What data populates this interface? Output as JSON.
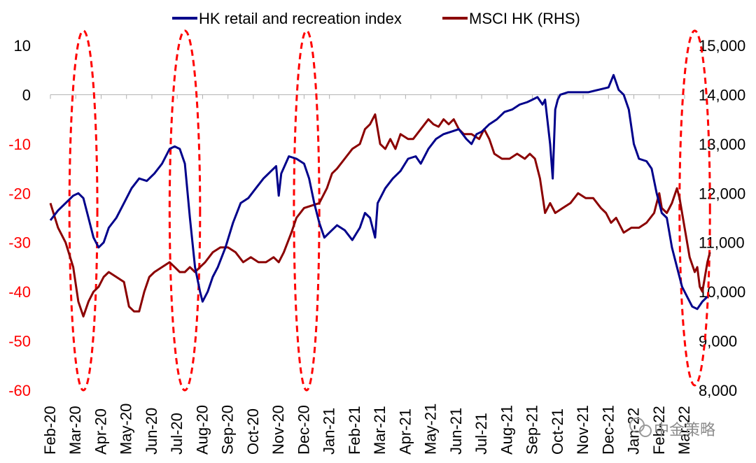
{
  "chart_data": {
    "type": "line",
    "title": "",
    "legend": [
      "HK retail and recreation index",
      "MSCI HK (RHS)"
    ],
    "legend_placement": "top-center",
    "x_labels": [
      "Feb-20",
      "Mar-20",
      "Apr-20",
      "May-20",
      "Jun-20",
      "Jul-20",
      "Aug-20",
      "Sep-20",
      "Oct-20",
      "Nov-20",
      "Dec-20",
      "Jan-21",
      "Feb-21",
      "Mar-21",
      "Apr-21",
      "May-21",
      "Jun-21",
      "Jul-21",
      "Aug-21",
      "Sep-21",
      "Oct-21",
      "Nov-21",
      "Dec-21",
      "Jan-22",
      "Feb-22",
      "Mar-22"
    ],
    "y_left": {
      "ticks": [
        "10",
        "0",
        "-10",
        "-20",
        "-30",
        "-40",
        "-50",
        "-60"
      ],
      "range": [
        -60,
        10
      ],
      "color": "#000000"
    },
    "y_right": {
      "ticks": [
        "15,000",
        "14,000",
        "13,000",
        "12,000",
        "11,000",
        "10,000",
        "9,000",
        "8,000"
      ],
      "range": [
        8000,
        15000
      ]
    },
    "series": [
      {
        "name": "HK retail and recreation index",
        "axis": "left",
        "color": "#00008b",
        "points": [
          [
            0,
            -25.5
          ],
          [
            0.3,
            -23.5
          ],
          [
            0.6,
            -22
          ],
          [
            0.9,
            -20.5
          ],
          [
            1.1,
            -20
          ],
          [
            1.3,
            -21
          ],
          [
            1.5,
            -25
          ],
          [
            1.7,
            -29
          ],
          [
            1.9,
            -31
          ],
          [
            2.1,
            -30
          ],
          [
            2.3,
            -27
          ],
          [
            2.6,
            -25
          ],
          [
            2.9,
            -22
          ],
          [
            3.2,
            -19
          ],
          [
            3.5,
            -17
          ],
          [
            3.8,
            -17.5
          ],
          [
            4.1,
            -16
          ],
          [
            4.4,
            -14
          ],
          [
            4.7,
            -11
          ],
          [
            4.9,
            -10.5
          ],
          [
            5.1,
            -11
          ],
          [
            5.3,
            -14
          ],
          [
            5.5,
            -25
          ],
          [
            5.7,
            -35
          ],
          [
            5.9,
            -40
          ],
          [
            6.0,
            -42
          ],
          [
            6.2,
            -40
          ],
          [
            6.4,
            -37
          ],
          [
            6.6,
            -35
          ],
          [
            6.9,
            -31
          ],
          [
            7.2,
            -26
          ],
          [
            7.5,
            -22
          ],
          [
            7.8,
            -21
          ],
          [
            8.1,
            -19
          ],
          [
            8.4,
            -17
          ],
          [
            8.7,
            -15.5
          ],
          [
            8.9,
            -14.5
          ],
          [
            9.0,
            -20.5
          ],
          [
            9.1,
            -16
          ],
          [
            9.4,
            -12.5
          ],
          [
            9.7,
            -13
          ],
          [
            10.0,
            -14
          ],
          [
            10.2,
            -17
          ],
          [
            10.4,
            -22
          ],
          [
            10.6,
            -26
          ],
          [
            10.8,
            -29
          ],
          [
            11.0,
            -28
          ],
          [
            11.3,
            -26.5
          ],
          [
            11.6,
            -27.5
          ],
          [
            11.9,
            -29.5
          ],
          [
            12.2,
            -27
          ],
          [
            12.4,
            -24
          ],
          [
            12.6,
            -25
          ],
          [
            12.8,
            -29
          ],
          [
            12.9,
            -22
          ],
          [
            13.2,
            -19
          ],
          [
            13.5,
            -17
          ],
          [
            13.8,
            -15.5
          ],
          [
            14.1,
            -13
          ],
          [
            14.4,
            -12.5
          ],
          [
            14.6,
            -14
          ],
          [
            14.9,
            -11
          ],
          [
            15.2,
            -9
          ],
          [
            15.5,
            -8
          ],
          [
            15.8,
            -7.5
          ],
          [
            16.1,
            -7
          ],
          [
            16.4,
            -9
          ],
          [
            16.6,
            -10
          ],
          [
            16.8,
            -8
          ],
          [
            17.0,
            -7.5
          ],
          [
            17.3,
            -6
          ],
          [
            17.6,
            -5
          ],
          [
            17.9,
            -3.5
          ],
          [
            18.2,
            -3
          ],
          [
            18.5,
            -2
          ],
          [
            18.8,
            -1.5
          ],
          [
            19.0,
            -1
          ],
          [
            19.2,
            -0.5
          ],
          [
            19.4,
            -2
          ],
          [
            19.5,
            -1
          ],
          [
            19.7,
            -10
          ],
          [
            19.8,
            -17
          ],
          [
            19.9,
            -3
          ],
          [
            20.0,
            -1
          ],
          [
            20.1,
            0
          ],
          [
            20.4,
            0.5
          ],
          [
            20.8,
            0.5
          ],
          [
            21.2,
            0.5
          ],
          [
            21.6,
            1
          ],
          [
            22.0,
            1.5
          ],
          [
            22.2,
            4
          ],
          [
            22.4,
            1
          ],
          [
            22.6,
            0
          ],
          [
            22.8,
            -3
          ],
          [
            23.0,
            -10
          ],
          [
            23.2,
            -13
          ],
          [
            23.5,
            -13.5
          ],
          [
            23.7,
            -15
          ],
          [
            23.9,
            -20
          ],
          [
            24.1,
            -24
          ],
          [
            24.3,
            -25
          ],
          [
            24.5,
            -31
          ],
          [
            24.7,
            -35
          ],
          [
            24.9,
            -39
          ],
          [
            25.1,
            -41
          ],
          [
            25.3,
            -43
          ],
          [
            25.5,
            -43.5
          ],
          [
            25.7,
            -42
          ],
          [
            25.9,
            -41
          ]
        ]
      },
      {
        "name": "MSCI HK (RHS)",
        "axis": "right",
        "color": "#8b0000",
        "points": [
          [
            0,
            11800
          ],
          [
            0.3,
            11300
          ],
          [
            0.6,
            11000
          ],
          [
            0.9,
            10500
          ],
          [
            1.1,
            9800
          ],
          [
            1.3,
            9500
          ],
          [
            1.5,
            9800
          ],
          [
            1.7,
            10000
          ],
          [
            1.9,
            10100
          ],
          [
            2.1,
            10300
          ],
          [
            2.3,
            10400
          ],
          [
            2.6,
            10300
          ],
          [
            2.9,
            10200
          ],
          [
            3.1,
            9700
          ],
          [
            3.3,
            9600
          ],
          [
            3.5,
            9600
          ],
          [
            3.7,
            10000
          ],
          [
            3.9,
            10300
          ],
          [
            4.1,
            10400
          ],
          [
            4.4,
            10500
          ],
          [
            4.7,
            10600
          ],
          [
            4.9,
            10500
          ],
          [
            5.1,
            10400
          ],
          [
            5.3,
            10400
          ],
          [
            5.5,
            10500
          ],
          [
            5.7,
            10400
          ],
          [
            5.9,
            10500
          ],
          [
            6.1,
            10600
          ],
          [
            6.4,
            10800
          ],
          [
            6.7,
            10900
          ],
          [
            7.0,
            10900
          ],
          [
            7.3,
            10800
          ],
          [
            7.6,
            10600
          ],
          [
            7.9,
            10700
          ],
          [
            8.2,
            10600
          ],
          [
            8.5,
            10600
          ],
          [
            8.8,
            10700
          ],
          [
            9.0,
            10600
          ],
          [
            9.2,
            10800
          ],
          [
            9.5,
            11200
          ],
          [
            9.7,
            11500
          ],
          [
            10.0,
            11700
          ],
          [
            10.3,
            11750
          ],
          [
            10.6,
            11800
          ],
          [
            10.9,
            12100
          ],
          [
            11.1,
            12400
          ],
          [
            11.3,
            12500
          ],
          [
            11.6,
            12700
          ],
          [
            11.9,
            12900
          ],
          [
            12.2,
            13000
          ],
          [
            12.4,
            13300
          ],
          [
            12.6,
            13400
          ],
          [
            12.8,
            13600
          ],
          [
            13.0,
            13000
          ],
          [
            13.2,
            12900
          ],
          [
            13.4,
            13100
          ],
          [
            13.6,
            12900
          ],
          [
            13.8,
            13200
          ],
          [
            14.1,
            13100
          ],
          [
            14.3,
            13100
          ],
          [
            14.6,
            13300
          ],
          [
            14.9,
            13500
          ],
          [
            15.1,
            13400
          ],
          [
            15.3,
            13350
          ],
          [
            15.5,
            13500
          ],
          [
            15.7,
            13400
          ],
          [
            15.9,
            13500
          ],
          [
            16.1,
            13300
          ],
          [
            16.3,
            13200
          ],
          [
            16.6,
            13200
          ],
          [
            16.9,
            13100
          ],
          [
            17.1,
            13300
          ],
          [
            17.3,
            13100
          ],
          [
            17.5,
            12800
          ],
          [
            17.8,
            12700
          ],
          [
            18.1,
            12700
          ],
          [
            18.4,
            12800
          ],
          [
            18.7,
            12700
          ],
          [
            18.9,
            12800
          ],
          [
            19.1,
            12700
          ],
          [
            19.3,
            12300
          ],
          [
            19.5,
            11600
          ],
          [
            19.7,
            11800
          ],
          [
            19.9,
            11600
          ],
          [
            20.2,
            11700
          ],
          [
            20.5,
            11800
          ],
          [
            20.8,
            12000
          ],
          [
            21.1,
            11900
          ],
          [
            21.4,
            11900
          ],
          [
            21.7,
            11700
          ],
          [
            21.9,
            11600
          ],
          [
            22.1,
            11400
          ],
          [
            22.3,
            11500
          ],
          [
            22.6,
            11200
          ],
          [
            22.9,
            11300
          ],
          [
            23.2,
            11300
          ],
          [
            23.5,
            11400
          ],
          [
            23.8,
            11600
          ],
          [
            23.9,
            11800
          ],
          [
            24.0,
            12000
          ],
          [
            24.1,
            11700
          ],
          [
            24.3,
            11600
          ],
          [
            24.5,
            11800
          ],
          [
            24.7,
            12100
          ],
          [
            24.8,
            11900
          ],
          [
            25.0,
            11300
          ],
          [
            25.2,
            10700
          ],
          [
            25.4,
            10400
          ],
          [
            25.5,
            10500
          ],
          [
            25.6,
            10100
          ],
          [
            25.7,
            10000
          ],
          [
            25.8,
            10300
          ],
          [
            25.9,
            10600
          ],
          [
            26.0,
            10800
          ]
        ]
      }
    ],
    "annotations": [
      {
        "type": "dashed-ellipse",
        "color": "#ff0000",
        "x_center": 1.3,
        "x_half_width": 0.55,
        "y_top": 13,
        "y_bottom": -60
      },
      {
        "type": "dashed-ellipse",
        "color": "#ff0000",
        "x_center": 5.3,
        "x_half_width": 0.6,
        "y_top": 13,
        "y_bottom": -60
      },
      {
        "type": "dashed-ellipse",
        "color": "#ff0000",
        "x_center": 10.1,
        "x_half_width": 0.5,
        "y_top": 13,
        "y_bottom": -60
      },
      {
        "type": "dashed-ellipse",
        "color": "#ff0000",
        "x_center": 25.4,
        "x_half_width": 0.6,
        "y_top": 13,
        "y_bottom": -59
      }
    ]
  },
  "watermark": {
    "text": "中金策略",
    "icon": "wechat-icon"
  }
}
